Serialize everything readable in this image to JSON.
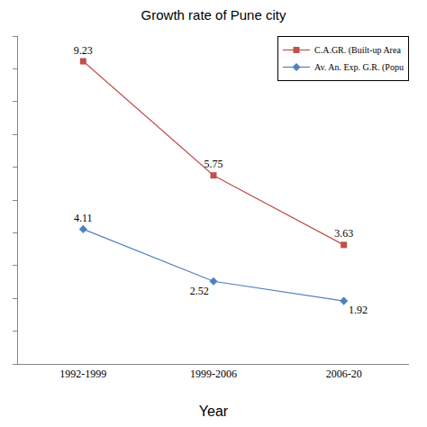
{
  "chart_data": {
    "type": "line",
    "title": "Growth rate of Pune city",
    "x_label": "Year",
    "categories": [
      "1992-1999",
      "1999-2006",
      "2006-20"
    ],
    "series": [
      {
        "name": "C.A.GR. (Built-up Area",
        "color": "#c0504d",
        "marker": "square",
        "values": [
          9.23,
          5.75,
          3.63
        ]
      },
      {
        "name": "Av. An. Exp. G.R. (Popu",
        "color": "#4f81bd",
        "marker": "diamond",
        "values": [
          4.11,
          2.52,
          1.92
        ]
      }
    ],
    "ylim": [
      0,
      10
    ],
    "yticks": [
      0,
      1,
      2,
      3,
      4,
      5,
      6,
      7,
      8,
      9,
      10
    ],
    "grid": false,
    "legend": "top right",
    "data_labels": true,
    "tick_labels": "x"
  }
}
